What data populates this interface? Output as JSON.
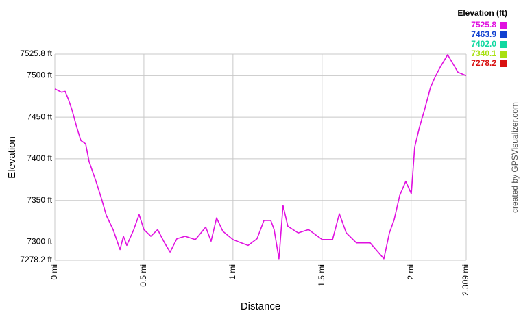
{
  "chart_data": {
    "type": "line",
    "xlabel": "Distance",
    "ylabel": "Elevation",
    "credit": "created by GPSVisualizer.com",
    "legend_title": "Elevation (ft)",
    "color_scale": [
      {
        "value": 7525.8,
        "label": "7525.8",
        "color": "#e010e0"
      },
      {
        "value": 7463.9,
        "label": "7463.9",
        "color": "#1040d0"
      },
      {
        "value": 7402,
        "label": "7402.0",
        "color": "#10d8a0"
      },
      {
        "value": 7340.1,
        "label": "7340.1",
        "color": "#a8e010"
      },
      {
        "value": 7278.2,
        "label": "7278.2",
        "color": "#d81010"
      }
    ],
    "x": [
      0,
      0.038,
      0.058,
      0.077,
      0.096,
      0.123,
      0.146,
      0.173,
      0.192,
      0.231,
      0.262,
      0.289,
      0.327,
      0.366,
      0.385,
      0.404,
      0.443,
      0.473,
      0.5,
      0.539,
      0.577,
      0.616,
      0.647,
      0.685,
      0.731,
      0.789,
      0.847,
      0.877,
      0.908,
      0.943,
      1.0,
      1.047,
      1.085,
      1.135,
      1.174,
      1.212,
      1.231,
      1.258,
      1.281,
      1.308,
      1.366,
      1.424,
      1.501,
      1.559,
      1.597,
      1.636,
      1.693,
      1.77,
      1.847,
      1.878,
      1.905,
      1.936,
      1.97,
      2.001,
      2.02,
      2.047,
      2.078,
      2.109,
      2.136,
      2.163,
      2.205,
      2.263,
      2.309
    ],
    "values": [
      7484,
      7480,
      7481,
      7471,
      7459,
      7438,
      7422,
      7418,
      7397,
      7373,
      7352,
      7332,
      7315,
      7291,
      7307,
      7296,
      7315,
      7333,
      7315,
      7307,
      7315,
      7299,
      7288,
      7304,
      7307,
      7303,
      7318,
      7301,
      7329,
      7313,
      7303,
      7299,
      7296,
      7304,
      7326,
      7326,
      7315,
      7280,
      7344,
      7319,
      7311,
      7315,
      7303,
      7303,
      7334,
      7311,
      7299,
      7299,
      7280,
      7311,
      7327,
      7356,
      7373,
      7358,
      7414,
      7438,
      7461,
      7486,
      7499,
      7510,
      7525,
      7504,
      7500
    ],
    "xlim": [
      0,
      2.309
    ],
    "xticks": [
      {
        "value": 0,
        "label": "0 mi"
      },
      {
        "value": 0.5,
        "label": "0.5 mi"
      },
      {
        "value": 1,
        "label": "1 mi"
      },
      {
        "value": 1.5,
        "label": "1.5 mi"
      },
      {
        "value": 2,
        "label": "2 mi"
      },
      {
        "value": 2.309,
        "label": "2.309 mi"
      }
    ],
    "ylim": [
      7278.2,
      7525.8
    ],
    "yticks": [
      {
        "value": 7278.2,
        "label": "7278.2 ft"
      },
      {
        "value": 7300,
        "label": "7300 ft"
      },
      {
        "value": 7350,
        "label": "7350 ft"
      },
      {
        "value": 7400,
        "label": "7400 ft"
      },
      {
        "value": 7450,
        "label": "7450 ft"
      },
      {
        "value": 7500,
        "label": "7500 ft"
      },
      {
        "value": 7525.8,
        "label": "7525.8 ft"
      }
    ],
    "grid": true
  }
}
